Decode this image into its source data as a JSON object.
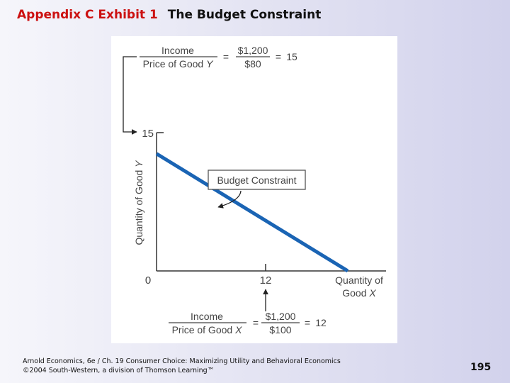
{
  "slide": {
    "exhibit_label": "Appendix C Exhibit 1",
    "title": "The Budget Constraint",
    "footer_line1": "Arnold Economics, 6e / Ch. 19 Consumer Choice: Maximizing Utility and Behavioral Economics",
    "footer_line2": "©2004 South-Western, a division of Thomson Learning™",
    "page_number": "195"
  },
  "chart_data": {
    "type": "line",
    "xlabel": "Quantity of Good X",
    "ylabel": "Quantity of Good Y",
    "xlim": [
      0,
      14.4
    ],
    "ylim": [
      0,
      17.7
    ],
    "x_ticks": [
      "0",
      "12"
    ],
    "y_ticks": [
      "15"
    ],
    "series": [
      {
        "name": "Budget Constraint",
        "x": [
          0,
          12
        ],
        "y": [
          15,
          0
        ],
        "color": "#1a64b4"
      }
    ],
    "grid": false,
    "annotations": {
      "budget_label": "Budget Constraint",
      "y_intercept_formula": {
        "numerator": "Income",
        "denominator_prefix": "Price of Good ",
        "denominator_good": "Y",
        "value_numerator": "$1,200",
        "value_denominator": "$80",
        "result": "15"
      },
      "x_intercept_formula": {
        "numerator": "Income",
        "denominator_prefix": "Price of Good ",
        "denominator_good": "X",
        "value_numerator": "$1,200",
        "value_denominator": "$100",
        "result": "12"
      }
    }
  }
}
